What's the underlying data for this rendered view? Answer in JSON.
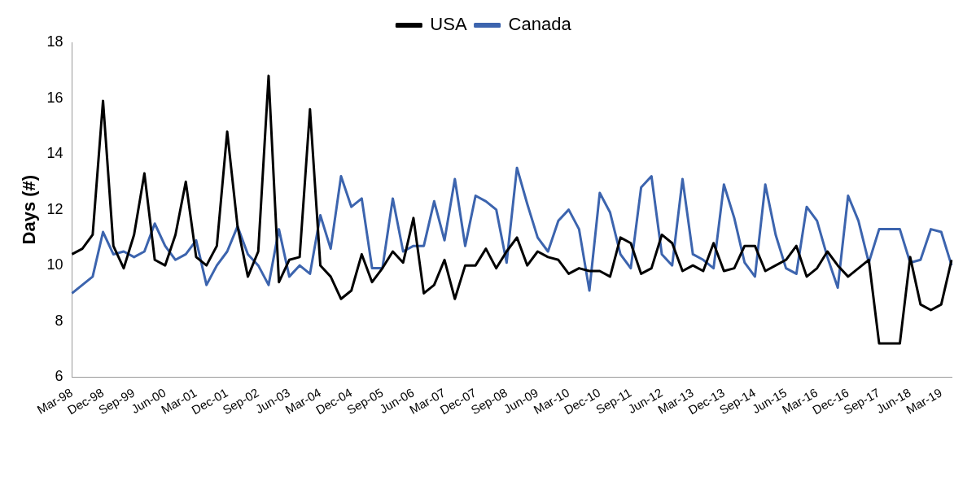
{
  "chart_data": {
    "type": "line",
    "ylabel": "Days (#)",
    "categories": [
      "Mar-98",
      null,
      null,
      "Dec-98",
      null,
      null,
      "Sep-99",
      null,
      null,
      "Jun-00",
      null,
      null,
      "Mar-01",
      null,
      null,
      "Dec-01",
      null,
      null,
      "Sep-02",
      null,
      null,
      "Jun-03",
      null,
      null,
      "Mar-04",
      null,
      null,
      "Dec-04",
      null,
      null,
      "Sep-05",
      null,
      null,
      "Jun-06",
      null,
      null,
      "Mar-07",
      null,
      null,
      "Dec-07",
      null,
      null,
      "Sep-08",
      null,
      null,
      "Jun-09",
      null,
      null,
      "Mar-10",
      null,
      null,
      "Dec-10",
      null,
      null,
      "Sep-11",
      null,
      null,
      "Jun-12",
      null,
      null,
      "Mar-13",
      null,
      null,
      "Dec-13",
      null,
      null,
      "Sep-14",
      null,
      null,
      "Jun-15",
      null,
      null,
      "Mar-16",
      null,
      null,
      "Dec-16",
      null,
      null,
      "Sep-17",
      null,
      null,
      "Jun-18",
      null,
      null,
      "Mar-19",
      null
    ],
    "series": [
      {
        "name": "USA",
        "color": "#000000",
        "values": [
          10.4,
          10.6,
          11.1,
          15.9,
          10.7,
          9.9,
          11.1,
          13.3,
          10.2,
          10.0,
          11.1,
          13.0,
          10.3,
          10.0,
          10.7,
          14.8,
          11.4,
          9.6,
          10.5,
          16.8,
          9.4,
          10.2,
          10.3,
          15.6,
          10.0,
          9.6,
          8.8,
          9.1,
          10.4,
          9.4,
          9.9,
          10.5,
          10.1,
          11.7,
          9.0,
          9.3,
          10.2,
          8.8,
          10.0,
          10.0,
          10.6,
          9.9,
          10.5,
          11.0,
          10.0,
          10.5,
          10.3,
          10.2,
          9.7,
          9.9,
          9.8,
          9.8,
          9.6,
          11.0,
          10.8,
          9.7,
          9.9,
          11.1,
          10.8,
          9.8,
          10.0,
          9.8,
          10.8,
          9.8,
          9.9,
          10.7,
          10.7,
          9.8,
          10.0,
          10.2,
          10.7,
          9.6,
          9.9,
          10.5,
          10.0,
          9.6,
          9.9,
          10.2,
          7.2,
          7.2,
          7.2,
          10.3,
          8.6,
          8.4,
          8.6,
          10.2
        ]
      },
      {
        "name": "Canada",
        "color": "#3c64ae",
        "values": [
          9.0,
          9.3,
          9.6,
          11.2,
          10.4,
          10.5,
          10.3,
          10.5,
          11.5,
          10.7,
          10.2,
          10.4,
          10.9,
          9.3,
          10.0,
          10.5,
          11.4,
          10.4,
          10.0,
          9.3,
          11.3,
          9.6,
          10.0,
          9.7,
          11.8,
          10.6,
          13.2,
          12.1,
          12.4,
          9.9,
          9.9,
          12.4,
          10.5,
          10.7,
          10.7,
          12.3,
          10.9,
          13.1,
          10.7,
          12.5,
          12.3,
          12.0,
          10.1,
          13.5,
          12.2,
          11.0,
          10.5,
          11.6,
          12.0,
          11.3,
          9.1,
          12.6,
          11.9,
          10.4,
          9.9,
          12.8,
          13.2,
          10.4,
          10.0,
          13.1,
          10.4,
          10.2,
          9.9,
          12.9,
          11.7,
          10.1,
          9.6,
          12.9,
          11.1,
          9.9,
          9.7,
          12.1,
          11.6,
          10.3,
          9.2,
          12.5,
          11.6,
          10.1,
          11.3,
          11.3,
          11.3,
          10.1,
          10.2,
          11.3,
          11.2,
          10.0
        ]
      }
    ],
    "ylim": [
      6,
      18
    ],
    "yticks": [
      6,
      8,
      10,
      12,
      14,
      16,
      18
    ],
    "grid": false,
    "legend": "top",
    "marker": "none",
    "line_style": "solid"
  }
}
